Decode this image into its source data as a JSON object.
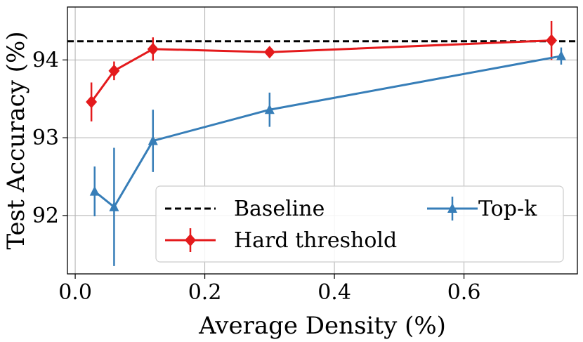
{
  "chart_data": {
    "type": "line",
    "title": "",
    "xlabel": "Average Density (%)",
    "ylabel": "Test Accuracy (%)",
    "xlim": [
      -0.012,
      0.775
    ],
    "ylim": [
      91.25,
      94.68
    ],
    "xticks": [
      0.0,
      0.2,
      0.4,
      0.6
    ],
    "xtick_labels": [
      "0.0",
      "0.2",
      "0.4",
      "0.6"
    ],
    "yticks": [
      92,
      93,
      94
    ],
    "ytick_labels": [
      "92",
      "93",
      "94"
    ],
    "grid": true,
    "legend_position": "bottom-right",
    "baseline": {
      "name": "Baseline",
      "value": 94.24,
      "color": "#000000",
      "style": "dashed"
    },
    "series": [
      {
        "name": "Hard threshold",
        "color": "#e41a1c",
        "marker": "diamond",
        "x": [
          0.025,
          0.06,
          0.12,
          0.3,
          0.735
        ],
        "y": [
          93.46,
          93.86,
          94.14,
          94.1,
          94.25
        ],
        "err": [
          0.25,
          0.12,
          0.15,
          0.07,
          0.25
        ]
      },
      {
        "name": "Top-k",
        "color": "#377eb8",
        "marker": "triangle",
        "x": [
          0.03,
          0.06,
          0.12,
          0.3,
          0.75
        ],
        "y": [
          92.31,
          92.11,
          92.96,
          93.36,
          94.05
        ],
        "err": [
          0.32,
          0.76,
          0.4,
          0.22,
          0.11
        ]
      }
    ]
  }
}
